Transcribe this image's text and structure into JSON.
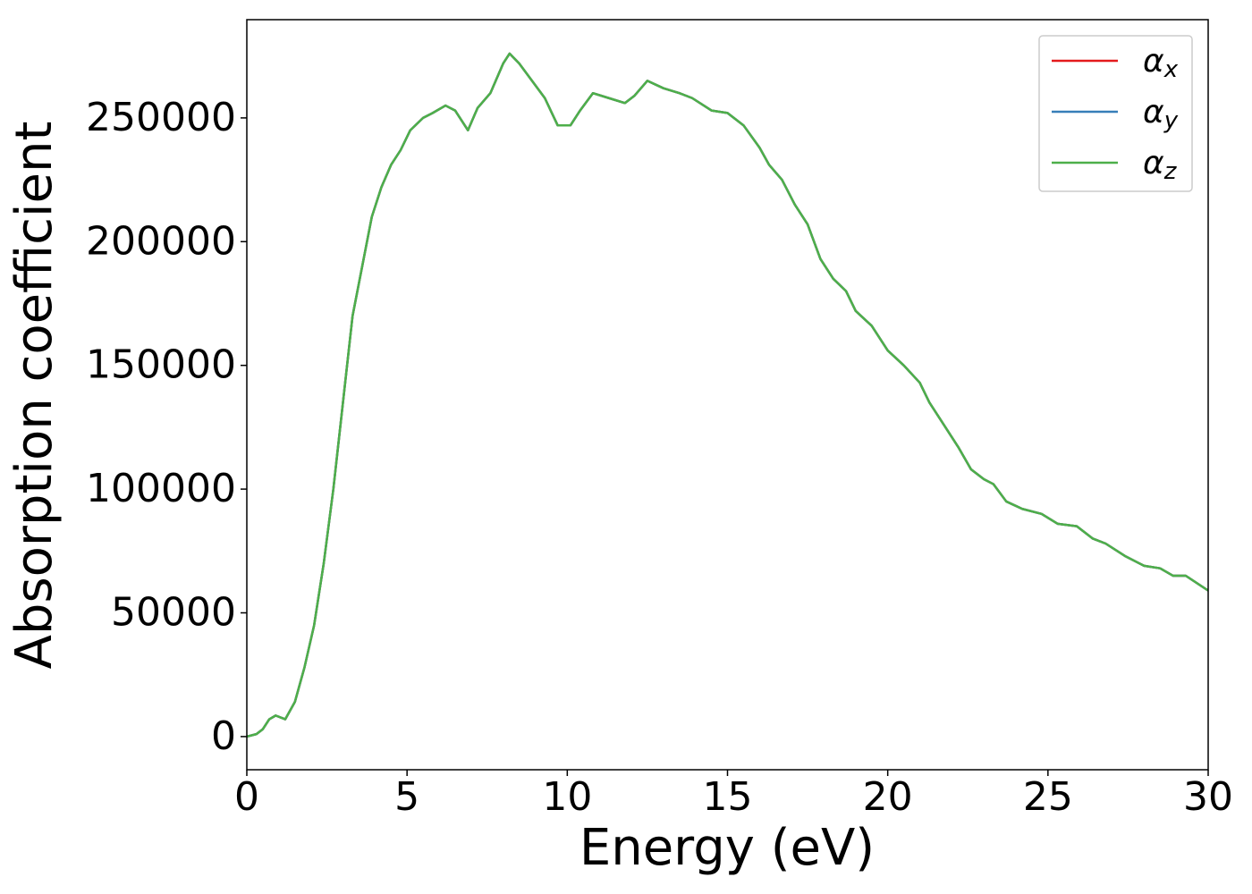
{
  "chart_data": {
    "type": "line",
    "x_label": "Energy (eV)",
    "y_label": "Absorption coefficient",
    "x": [
      0,
      0.3,
      0.5,
      0.7,
      0.9,
      1.2,
      1.5,
      1.8,
      2.1,
      2.4,
      2.7,
      3.0,
      3.3,
      3.6,
      3.9,
      4.2,
      4.5,
      4.8,
      5.1,
      5.5,
      5.8,
      6.2,
      6.5,
      6.9,
      7.2,
      7.6,
      8.0,
      8.2,
      8.5,
      8.9,
      9.3,
      9.7,
      10.1,
      10.4,
      10.8,
      11.3,
      11.8,
      12.1,
      12.5,
      13.0,
      13.5,
      13.9,
      14.5,
      15.0,
      15.5,
      16.0,
      16.3,
      16.7,
      17.1,
      17.5,
      17.9,
      18.3,
      18.7,
      19.0,
      19.5,
      20.0,
      20.5,
      21.0,
      21.3,
      21.7,
      22.2,
      22.6,
      23.0,
      23.3,
      23.7,
      24.2,
      24.8,
      25.3,
      25.9,
      26.4,
      26.8,
      27.4,
      28.0,
      28.5,
      28.9,
      29.3,
      30.0
    ],
    "series": [
      {
        "name": "αx",
        "color": "#e41a1c",
        "values": [
          0,
          1000,
          3000,
          7000,
          8500,
          7000,
          14000,
          28000,
          45000,
          70000,
          100000,
          135000,
          170000,
          190000,
          210000,
          222000,
          231000,
          237000,
          245000,
          250000,
          252000,
          255000,
          253000,
          245000,
          254000,
          260000,
          272000,
          276000,
          272000,
          265000,
          258000,
          247000,
          247000,
          253000,
          260000,
          258000,
          256000,
          259000,
          265000,
          262000,
          260000,
          258000,
          253000,
          252000,
          247000,
          238000,
          231000,
          225000,
          215000,
          207000,
          193000,
          185000,
          180000,
          172000,
          166000,
          156000,
          150000,
          143000,
          135000,
          127000,
          117000,
          108000,
          104000,
          102000,
          95000,
          92000,
          90000,
          86000,
          85000,
          80000,
          78000,
          73000,
          69000,
          68000,
          65000,
          65000,
          59000
        ]
      },
      {
        "name": "αy",
        "color": "#377eb8",
        "values": [
          0,
          1000,
          3000,
          7000,
          8500,
          7000,
          14000,
          28000,
          45000,
          70000,
          100000,
          135000,
          170000,
          190000,
          210000,
          222000,
          231000,
          237000,
          245000,
          250000,
          252000,
          255000,
          253000,
          245000,
          254000,
          260000,
          272000,
          276000,
          272000,
          265000,
          258000,
          247000,
          247000,
          253000,
          260000,
          258000,
          256000,
          259000,
          265000,
          262000,
          260000,
          258000,
          253000,
          252000,
          247000,
          238000,
          231000,
          225000,
          215000,
          207000,
          193000,
          185000,
          180000,
          172000,
          166000,
          156000,
          150000,
          143000,
          135000,
          127000,
          117000,
          108000,
          104000,
          102000,
          95000,
          92000,
          90000,
          86000,
          85000,
          80000,
          78000,
          73000,
          69000,
          68000,
          65000,
          65000,
          59000
        ]
      },
      {
        "name": "αz",
        "color": "#4daf4a",
        "values": [
          0,
          1000,
          3000,
          7000,
          8500,
          7000,
          14000,
          28000,
          45000,
          70000,
          100000,
          135000,
          170000,
          190000,
          210000,
          222000,
          231000,
          237000,
          245000,
          250000,
          252000,
          255000,
          253000,
          245000,
          254000,
          260000,
          272000,
          276000,
          272000,
          265000,
          258000,
          247000,
          247000,
          253000,
          260000,
          258000,
          256000,
          259000,
          265000,
          262000,
          260000,
          258000,
          253000,
          252000,
          247000,
          238000,
          231000,
          225000,
          215000,
          207000,
          193000,
          185000,
          180000,
          172000,
          166000,
          156000,
          150000,
          143000,
          135000,
          127000,
          117000,
          108000,
          104000,
          102000,
          95000,
          92000,
          90000,
          86000,
          85000,
          80000,
          78000,
          73000,
          69000,
          68000,
          65000,
          65000,
          59000
        ]
      }
    ],
    "xlim": [
      0,
      30
    ],
    "xticks": [
      0,
      5,
      10,
      15,
      20,
      25,
      30
    ],
    "ylim": [
      -13400,
      289700
    ],
    "yticks": [
      0,
      50000,
      100000,
      150000,
      200000,
      250000
    ],
    "legend": "upper right",
    "grid": false
  }
}
